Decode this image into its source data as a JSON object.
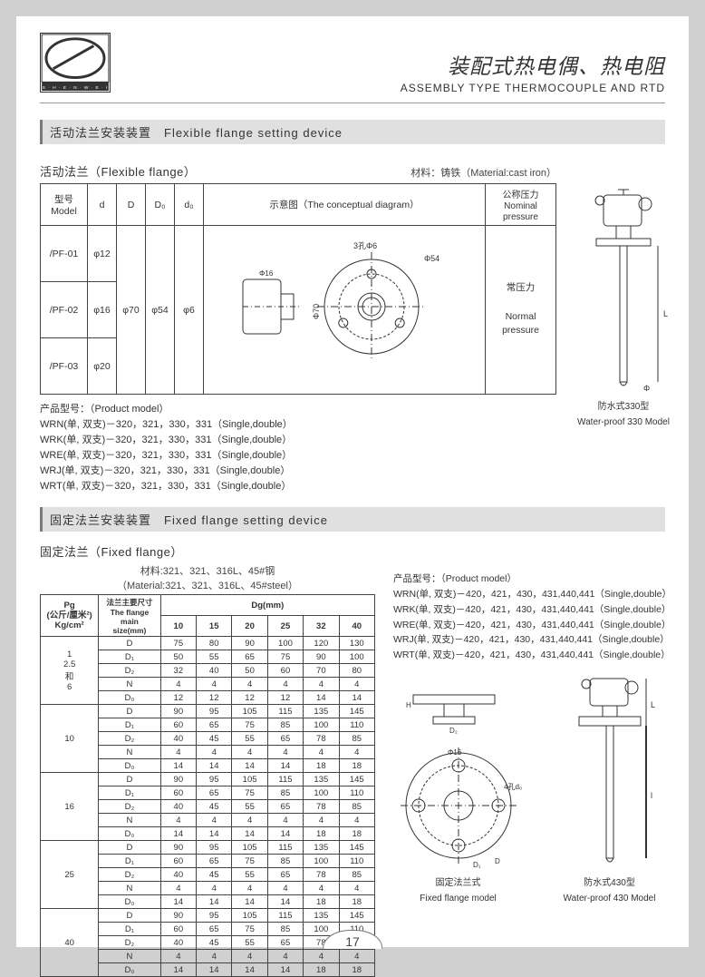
{
  "header": {
    "title_cn": "装配式热电偶、热电阻",
    "title_en": "ASSEMBLY TYPE THERMOCOUPLE AND RTD"
  },
  "section1": {
    "bar": "活动法兰安装装置　Flexible flange setting device",
    "subhead": "活动法兰（Flexible flange）",
    "material": "材料：铸铁（Material:cast iron）",
    "table": {
      "head": {
        "model": "型号\nModel",
        "d": "d",
        "D": "D",
        "D0": "D₀",
        "d0": "d₀",
        "diagram": "示意图（The conceptual diagram）",
        "nom": "公称压力\nNominal pressure"
      },
      "rows": [
        {
          "model": "/PF-01",
          "d": "φ12"
        },
        {
          "model": "/PF-02",
          "d": "φ16"
        },
        {
          "model": "/PF-03",
          "d": "φ20"
        }
      ],
      "shared": {
        "D": "φ70",
        "D0": "φ54",
        "d0": "φ6",
        "diag_labels": {
          "holes": "3孔Φ6",
          "d54": "Φ54",
          "d70": "Φ70",
          "d16": "Φ16"
        },
        "nom_cn": "常压力",
        "nom_en1": "Normal",
        "nom_en2": "pressure"
      }
    },
    "products": {
      "lead": "产品型号：（Product model）",
      "lines": [
        "WRN(单, 双支)－320，321，330，331（Single,double）",
        "WRK(单, 双支)－320，321，330，331（Single,double）",
        "WRE(单, 双支)－320，321，330，331（Single,double）",
        "WRJ(单, 双支)－320，321，330，331（Single,double）",
        "WRT(单, 双支)－320，321，330，331（Single,double）"
      ]
    },
    "drawing": {
      "label_cn": "防水式330型",
      "label_en": "Water-proof 330 Model"
    }
  },
  "section2": {
    "bar": "固定法兰安装装置　Fixed flange setting device",
    "subhead": "固定法兰（Fixed flange）",
    "material": "材料:321、321、316L、45#钢\n（Material:321、321、316L、45#steel）",
    "table": {
      "pg": "Pg\n(公斤/厘米²)\nKg/cm²",
      "flange": "法兰主要尺寸\nThe flange main\nsize(mm)",
      "dg": "Dg(mm)",
      "dg_cols": [
        "10",
        "15",
        "20",
        "25",
        "32",
        "40"
      ],
      "params": [
        "D",
        "D₁",
        "D₂",
        "N",
        "D₀"
      ],
      "groups": [
        {
          "pg": "1\n2.5\n和\n6",
          "rows": [
            [
              "75",
              "80",
              "90",
              "100",
              "120",
              "130"
            ],
            [
              "50",
              "55",
              "65",
              "75",
              "90",
              "100"
            ],
            [
              "32",
              "40",
              "50",
              "60",
              "70",
              "80"
            ],
            [
              "4",
              "4",
              "4",
              "4",
              "4",
              "4"
            ],
            [
              "12",
              "12",
              "12",
              "12",
              "14",
              "14"
            ]
          ]
        },
        {
          "pg": "10",
          "rows": [
            [
              "90",
              "95",
              "105",
              "115",
              "135",
              "145"
            ],
            [
              "60",
              "65",
              "75",
              "85",
              "100",
              "110"
            ],
            [
              "40",
              "45",
              "55",
              "65",
              "78",
              "85"
            ],
            [
              "4",
              "4",
              "4",
              "4",
              "4",
              "4"
            ],
            [
              "14",
              "14",
              "14",
              "14",
              "18",
              "18"
            ]
          ]
        },
        {
          "pg": "16",
          "rows": [
            [
              "90",
              "95",
              "105",
              "115",
              "135",
              "145"
            ],
            [
              "60",
              "65",
              "75",
              "85",
              "100",
              "110"
            ],
            [
              "40",
              "45",
              "55",
              "65",
              "78",
              "85"
            ],
            [
              "4",
              "4",
              "4",
              "4",
              "4",
              "4"
            ],
            [
              "14",
              "14",
              "14",
              "14",
              "18",
              "18"
            ]
          ]
        },
        {
          "pg": "25",
          "rows": [
            [
              "90",
              "95",
              "105",
              "115",
              "135",
              "145"
            ],
            [
              "60",
              "65",
              "75",
              "85",
              "100",
              "110"
            ],
            [
              "40",
              "45",
              "55",
              "65",
              "78",
              "85"
            ],
            [
              "4",
              "4",
              "4",
              "4",
              "4",
              "4"
            ],
            [
              "14",
              "14",
              "14",
              "14",
              "18",
              "18"
            ]
          ]
        },
        {
          "pg": "40",
          "rows": [
            [
              "90",
              "95",
              "105",
              "115",
              "135",
              "145"
            ],
            [
              "60",
              "65",
              "75",
              "85",
              "100",
              "110"
            ],
            [
              "40",
              "45",
              "55",
              "65",
              "78",
              "85"
            ],
            [
              "4",
              "4",
              "4",
              "4",
              "4",
              "4"
            ],
            [
              "14",
              "14",
              "14",
              "14",
              "18",
              "18"
            ]
          ]
        }
      ]
    },
    "products": {
      "lead": "产品型号：（Product model）",
      "lines": [
        "WRN(单, 双支)－420，421，430，431,440,441（Single,double）",
        "WRK(单, 双支)－420，421，430，431,440,441（Single,double）",
        "WRE(单, 双支)－420，421，430，431,440,441（Single,double）",
        "WRJ(单, 双支)－420，421，430，431,440,441（Single,double）",
        "WRT(单, 双支)－420，421，430，431,440,441（Single,double）"
      ]
    },
    "drawings": [
      {
        "label_cn": "固定法兰式",
        "label_en": "Fixed flange model"
      },
      {
        "label_cn": "防水式430型",
        "label_en": "Water-proof 430 Model"
      }
    ]
  },
  "page_number": "17",
  "colors": {
    "bar_bg": "#e0e0e0",
    "bar_border": "#7a7a7a",
    "page_bg": "#d0d0d0",
    "line": "#444444",
    "text": "#333333"
  }
}
